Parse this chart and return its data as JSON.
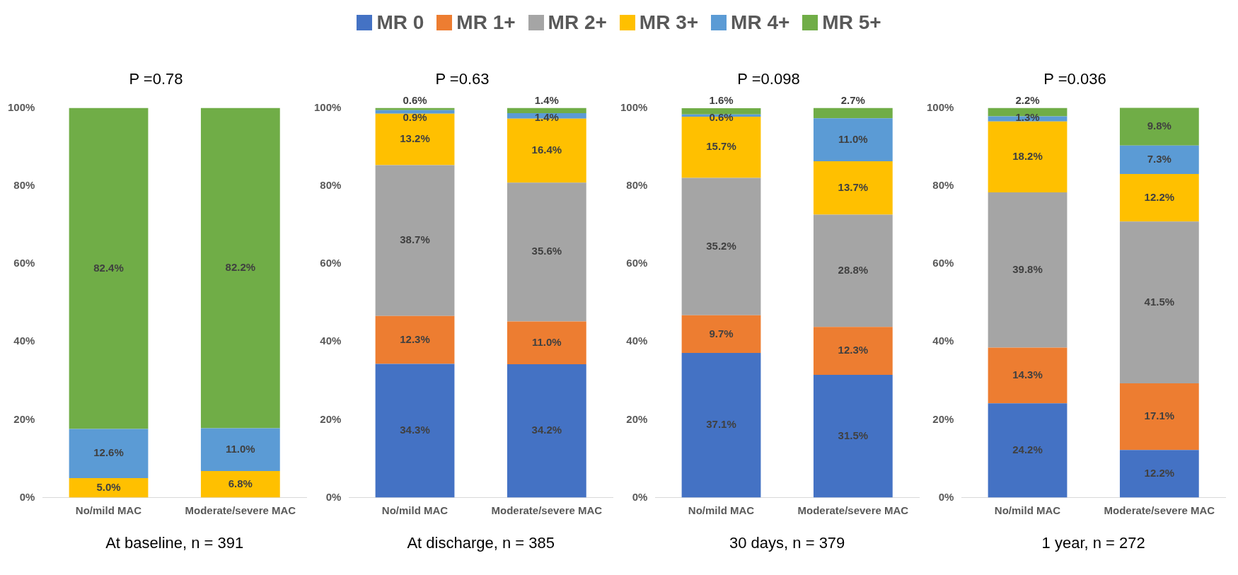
{
  "chart_data": [
    {
      "type": "bar",
      "stacked": true,
      "legend": "top",
      "title": "P =0.78",
      "xlabel": "At baseline, n = 391",
      "categories": [
        "No/mild MAC",
        "Moderate/severe MAC"
      ],
      "ylim": [
        0,
        100
      ],
      "yticks": [
        {
          "value": 0,
          "label": "0%"
        },
        {
          "value": 20,
          "label": "20%"
        },
        {
          "value": 40,
          "label": "40%"
        },
        {
          "value": 60,
          "label": "60%"
        },
        {
          "value": 80,
          "label": "80%"
        },
        {
          "value": 100,
          "label": "100%"
        }
      ],
      "series": [
        {
          "name": "MR 0",
          "color": "#4472c4",
          "values": [
            null,
            null
          ],
          "value_labels": [
            null,
            null
          ]
        },
        {
          "name": "MR 1+",
          "color": "#ed7d31",
          "values": [
            null,
            null
          ],
          "value_labels": [
            null,
            null
          ]
        },
        {
          "name": "MR 2+",
          "color": "#a5a5a5",
          "values": [
            null,
            null
          ],
          "value_labels": [
            null,
            null
          ]
        },
        {
          "name": "MR 3+",
          "color": "#ffc000",
          "values": [
            5.0,
            6.8
          ],
          "value_labels": [
            "5.0%",
            "6.8%"
          ]
        },
        {
          "name": "MR 4+",
          "color": "#5b9bd5",
          "values": [
            12.6,
            11.0
          ],
          "value_labels": [
            "12.6%",
            "11.0%"
          ]
        },
        {
          "name": "MR 5+",
          "color": "#70ad47",
          "values": [
            82.4,
            82.2
          ],
          "value_labels": [
            "82.4%",
            "82.2%"
          ]
        }
      ]
    },
    {
      "type": "bar",
      "stacked": true,
      "title": "P =0.63",
      "xlabel": "At discharge, n = 385",
      "categories": [
        "No/mild MAC",
        "Moderate/severe MAC"
      ],
      "ylim": [
        0,
        100
      ],
      "yticks": [
        {
          "value": 0,
          "label": "0%"
        },
        {
          "value": 20,
          "label": "20%"
        },
        {
          "value": 40,
          "label": "40%"
        },
        {
          "value": 60,
          "label": "60%"
        },
        {
          "value": 80,
          "label": "80%"
        },
        {
          "value": 100,
          "label": "100%"
        }
      ],
      "series": [
        {
          "color": "#4472c4",
          "values": [
            34.3,
            34.2
          ],
          "value_labels": [
            "34.3%",
            "34.2%"
          ]
        },
        {
          "color": "#ed7d31",
          "values": [
            12.3,
            11.0
          ],
          "value_labels": [
            "12.3%",
            "11.0%"
          ]
        },
        {
          "color": "#a5a5a5",
          "values": [
            38.7,
            35.6
          ],
          "value_labels": [
            "38.7%",
            "35.6%"
          ]
        },
        {
          "color": "#ffc000",
          "values": [
            13.2,
            16.4
          ],
          "value_labels": [
            "13.2%",
            "16.4%"
          ]
        },
        {
          "color": "#5b9bd5",
          "values": [
            0.9,
            1.4
          ],
          "value_labels": [
            "0.9%",
            "1.4%"
          ]
        },
        {
          "color": "#70ad47",
          "values": [
            0.6,
            1.4
          ],
          "value_labels": [
            "0.6%",
            "1.4%"
          ]
        }
      ]
    },
    {
      "type": "bar",
      "stacked": true,
      "title": "P =0.098",
      "xlabel": "30 days, n = 379",
      "categories": [
        "No/mild MAC",
        "Moderate/severe MAC"
      ],
      "ylim": [
        0,
        100
      ],
      "yticks": [
        {
          "value": 0,
          "label": "0%"
        },
        {
          "value": 20,
          "label": "20%"
        },
        {
          "value": 40,
          "label": "40%"
        },
        {
          "value": 60,
          "label": "60%"
        },
        {
          "value": 80,
          "label": "80%"
        },
        {
          "value": 100,
          "label": "100%"
        }
      ],
      "series": [
        {
          "color": "#4472c4",
          "values": [
            37.1,
            31.5
          ],
          "value_labels": [
            "37.1%",
            "31.5%"
          ]
        },
        {
          "color": "#ed7d31",
          "values": [
            9.7,
            12.3
          ],
          "value_labels": [
            "9.7%",
            "12.3%"
          ]
        },
        {
          "color": "#a5a5a5",
          "values": [
            35.2,
            28.8
          ],
          "value_labels": [
            "35.2%",
            "28.8%"
          ]
        },
        {
          "color": "#ffc000",
          "values": [
            15.7,
            13.7
          ],
          "value_labels": [
            "15.7%",
            "13.7%"
          ]
        },
        {
          "color": "#5b9bd5",
          "values": [
            0.6,
            11.0
          ],
          "value_labels": [
            "0.6%",
            "11.0%"
          ]
        },
        {
          "color": "#70ad47",
          "values": [
            1.6,
            2.7
          ],
          "value_labels": [
            "1.6%",
            "2.7%"
          ]
        }
      ]
    },
    {
      "type": "bar",
      "stacked": true,
      "title": "P =0.036",
      "xlabel": "1 year, n = 272",
      "categories": [
        "No/mild MAC",
        "Moderate/severe MAC"
      ],
      "ylim": [
        0,
        100
      ],
      "yticks": [
        {
          "value": 0,
          "label": "0%"
        },
        {
          "value": 20,
          "label": "20%"
        },
        {
          "value": 40,
          "label": "40%"
        },
        {
          "value": 60,
          "label": "60%"
        },
        {
          "value": 80,
          "label": "80%"
        },
        {
          "value": 100,
          "label": "100%"
        }
      ],
      "series": [
        {
          "color": "#4472c4",
          "values": [
            24.2,
            12.2
          ],
          "value_labels": [
            "24.2%",
            "12.2%"
          ]
        },
        {
          "color": "#ed7d31",
          "values": [
            14.3,
            17.1
          ],
          "value_labels": [
            "14.3%",
            "17.1%"
          ]
        },
        {
          "color": "#a5a5a5",
          "values": [
            39.8,
            41.5
          ],
          "value_labels": [
            "39.8%",
            "41.5%"
          ]
        },
        {
          "color": "#ffc000",
          "values": [
            18.2,
            12.2
          ],
          "value_labels": [
            "18.2%",
            "12.2%"
          ]
        },
        {
          "color": "#5b9bd5",
          "values": [
            1.3,
            7.3
          ],
          "value_labels": [
            "1.3%",
            "7.3%"
          ]
        },
        {
          "color": "#70ad47",
          "values": [
            2.2,
            9.8
          ],
          "value_labels": [
            "2.2%",
            "9.8%"
          ]
        }
      ]
    }
  ]
}
